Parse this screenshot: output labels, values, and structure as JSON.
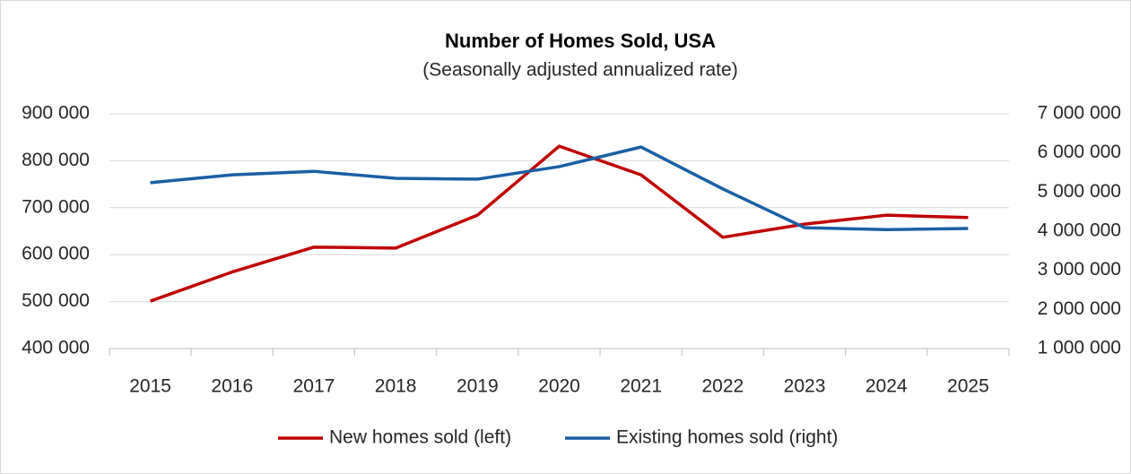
{
  "chart_data": {
    "type": "line",
    "title": "Number of Homes Sold, USA",
    "subtitle": "(Seasonally adjusted annualized rate)",
    "categories": [
      "2015",
      "2016",
      "2017",
      "2018",
      "2019",
      "2020",
      "2021",
      "2022",
      "2023",
      "2024",
      "2025"
    ],
    "series": [
      {
        "name": "New homes sold (left)",
        "color": "#c00000",
        "axis": "y",
        "values": [
          501000,
          563000,
          616000,
          614000,
          684000,
          831000,
          770000,
          637000,
          665000,
          684000,
          679000
        ]
      },
      {
        "name": "Existing homes sold (right)",
        "color": "#1a5fa6",
        "axis": "y2",
        "values": [
          5240000,
          5440000,
          5530000,
          5350000,
          5330000,
          5650000,
          6150000,
          5080000,
          4090000,
          4040000,
          4070000
        ]
      }
    ],
    "ylim": [
      400000,
      900000
    ],
    "yticks": [
      {
        "value": 400000,
        "label": "400 000"
      },
      {
        "value": 500000,
        "label": "500 000"
      },
      {
        "value": 600000,
        "label": "600 000"
      },
      {
        "value": 700000,
        "label": "700 000"
      },
      {
        "value": 800000,
        "label": "800 000"
      },
      {
        "value": 900000,
        "label": "900 000"
      }
    ],
    "y2lim": [
      1000000,
      7000000
    ],
    "y2ticks": [
      {
        "value": 1000000,
        "label": "1 000 000"
      },
      {
        "value": 2000000,
        "label": "2 000 000"
      },
      {
        "value": 3000000,
        "label": "3 000 000"
      },
      {
        "value": 4000000,
        "label": "4 000 000"
      },
      {
        "value": 5000000,
        "label": "5 000 000"
      },
      {
        "value": 6000000,
        "label": "6 000 000"
      },
      {
        "value": 7000000,
        "label": "7 000 000"
      }
    ],
    "grid": true,
    "legend": "bottom"
  }
}
